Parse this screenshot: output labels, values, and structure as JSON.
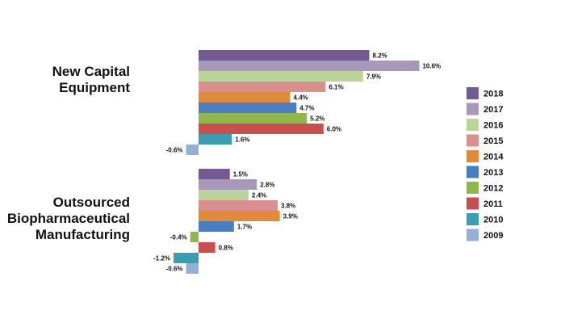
{
  "chart_data": {
    "type": "bar",
    "orientation": "horizontal",
    "grid": false,
    "legend_position": "right",
    "categories": [
      {
        "lines": [
          "New Capital",
          "Equipment"
        ]
      },
      {
        "lines": [
          "Outsourced",
          "Biopharmaceutical",
          "Manufacturing"
        ]
      }
    ],
    "series": [
      {
        "name": "2018",
        "color": "#735a93",
        "values": [
          8.2,
          1.5
        ],
        "labels": [
          "8.2%",
          "1.5%"
        ]
      },
      {
        "name": "2017",
        "color": "#a797b8",
        "values": [
          10.6,
          2.8
        ],
        "labels": [
          "10.6%",
          "2.8%"
        ]
      },
      {
        "name": "2016",
        "color": "#bcd49a",
        "values": [
          7.9,
          2.4
        ],
        "labels": [
          "7.9%",
          "2.4%"
        ]
      },
      {
        "name": "2015",
        "color": "#d9908c",
        "values": [
          6.1,
          3.8
        ],
        "labels": [
          "6.1%",
          "3.8%"
        ]
      },
      {
        "name": "2014",
        "color": "#e08a3c",
        "values": [
          4.4,
          3.9
        ],
        "labels": [
          "4.4%",
          "3.9%"
        ]
      },
      {
        "name": "2013",
        "color": "#4a7ec0",
        "values": [
          4.7,
          1.7
        ],
        "labels": [
          "4.7%",
          "1.7%"
        ]
      },
      {
        "name": "2012",
        "color": "#92b64e",
        "values": [
          5.2,
          -0.4
        ],
        "labels": [
          "5.2%",
          "-0.4%"
        ]
      },
      {
        "name": "2011",
        "color": "#c55050",
        "values": [
          6.0,
          0.8
        ],
        "labels": [
          "6.0%",
          "0.8%"
        ]
      },
      {
        "name": "2010",
        "color": "#3e9cb0",
        "values": [
          1.6,
          -1.2
        ],
        "labels": [
          "1.6%",
          "-1.2%"
        ]
      },
      {
        "name": "2009",
        "color": "#97afd8",
        "values": [
          -0.6,
          -0.6
        ],
        "labels": [
          "-0.6%",
          "-0.6%"
        ]
      }
    ]
  }
}
